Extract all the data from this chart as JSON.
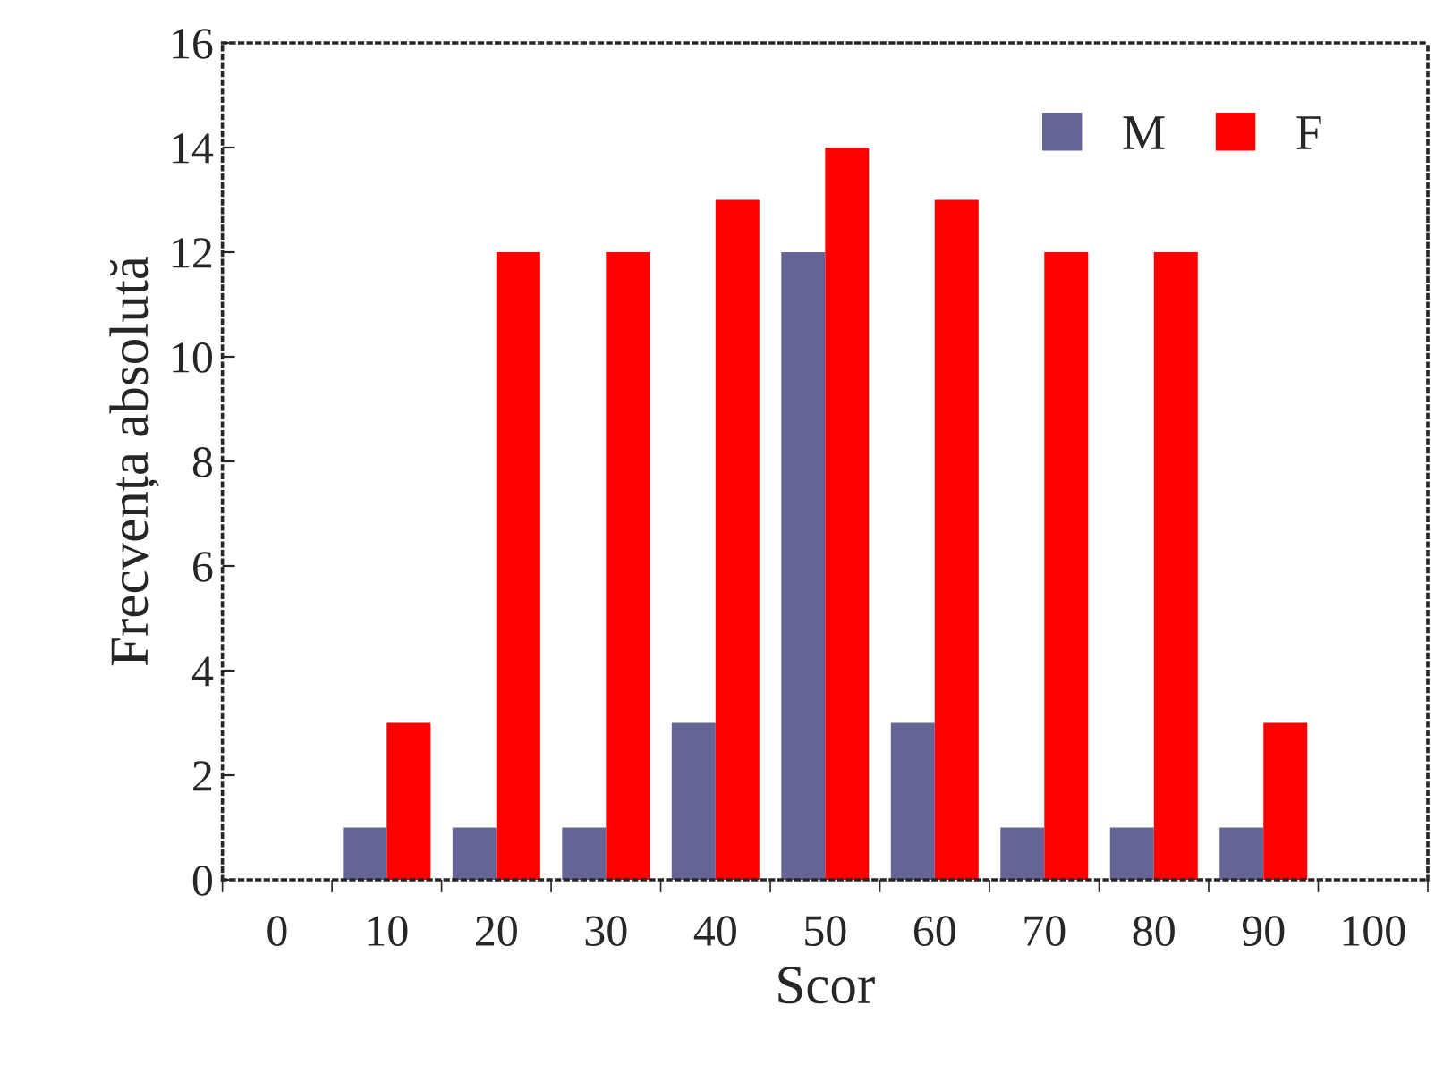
{
  "chart_data": {
    "type": "bar",
    "xlabel": "Scor",
    "ylabel": "Frecvența absolută",
    "categories": [
      "0",
      "10",
      "20",
      "30",
      "40",
      "50",
      "60",
      "70",
      "80",
      "90",
      "100"
    ],
    "series": [
      {
        "name": "M",
        "color": "#646496",
        "values": [
          0,
          1,
          1,
          1,
          3,
          12,
          3,
          1,
          1,
          1,
          0
        ]
      },
      {
        "name": "F",
        "color": "#ff0000",
        "values": [
          0,
          3,
          12,
          12,
          13,
          14,
          13,
          12,
          12,
          3,
          0
        ]
      }
    ],
    "ylim": [
      0,
      16
    ],
    "yticks": [
      0,
      2,
      4,
      6,
      8,
      10,
      12,
      14,
      16
    ],
    "grid": false,
    "legend": "top right"
  }
}
